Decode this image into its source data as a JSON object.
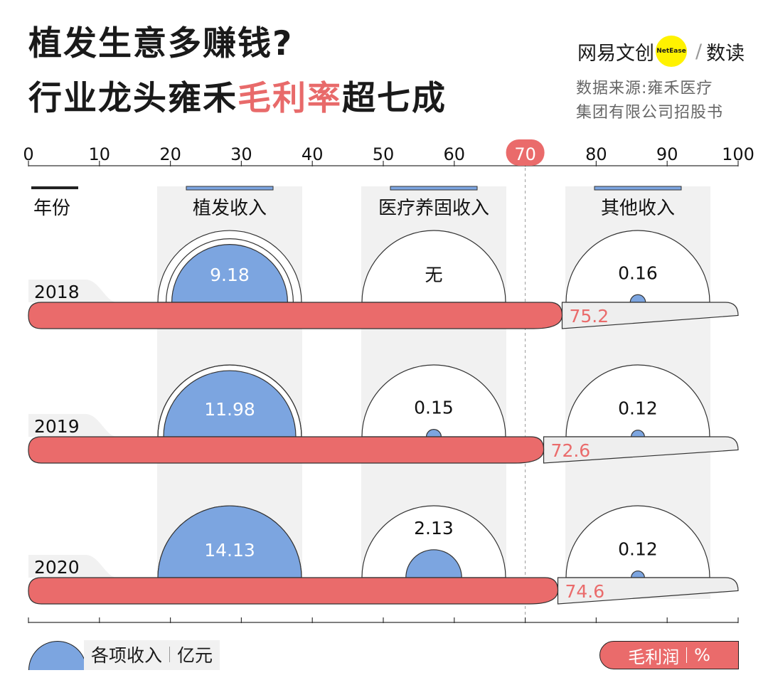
{
  "title": {
    "line1": "植发生意多赚钱?",
    "line2_prefix": "行业龙头雍禾",
    "line2_highlight": "毛利率",
    "line2_suffix": "超七成"
  },
  "brand": {
    "name": "网易文创",
    "badge": "NetEase",
    "slash": "/",
    "column": "数读"
  },
  "source": {
    "line1": "数据来源:雍禾医疗",
    "line2": "集团有限公司招股书"
  },
  "legend": {
    "revenue_label": "各项收入",
    "revenue_unit": "亿元",
    "margin_label": "毛利润",
    "margin_unit": "%"
  },
  "colors": {
    "revenue": "#7ca5e0",
    "margin": "#ea6b6b",
    "highlight": "#e86a6a",
    "panel": "#f1f1f1",
    "accent_bar": "#7ca5e0"
  },
  "chart_data": {
    "type": "bar",
    "title": "植发生意多赚钱?行业龙头雍禾毛利率超七成",
    "axis": {
      "min": 0,
      "max": 100,
      "ticks": [
        0,
        10,
        20,
        30,
        40,
        50,
        60,
        70,
        80,
        90,
        100
      ],
      "highlight_tick": 70
    },
    "year_header": "年份",
    "years": [
      "2018",
      "2019",
      "2020"
    ],
    "gross_margin": [
      75.2,
      72.6,
      74.6
    ],
    "revenue_categories": [
      "植发收入",
      "医疗养固收入",
      "其他收入"
    ],
    "revenue_scale_max": 14.13,
    "revenue_series": [
      {
        "name": "植发收入",
        "values": [
          9.18,
          11.98,
          14.13
        ],
        "labels": [
          "9.18",
          "11.98",
          "14.13"
        ]
      },
      {
        "name": "医疗养固收入",
        "values": [
          0,
          0.15,
          2.13
        ],
        "labels": [
          "无",
          "0.15",
          "2.13"
        ]
      },
      {
        "name": "其他收入",
        "values": [
          0.16,
          0.12,
          0.12
        ],
        "labels": [
          "0.16",
          "0.12",
          "0.12"
        ]
      }
    ]
  }
}
